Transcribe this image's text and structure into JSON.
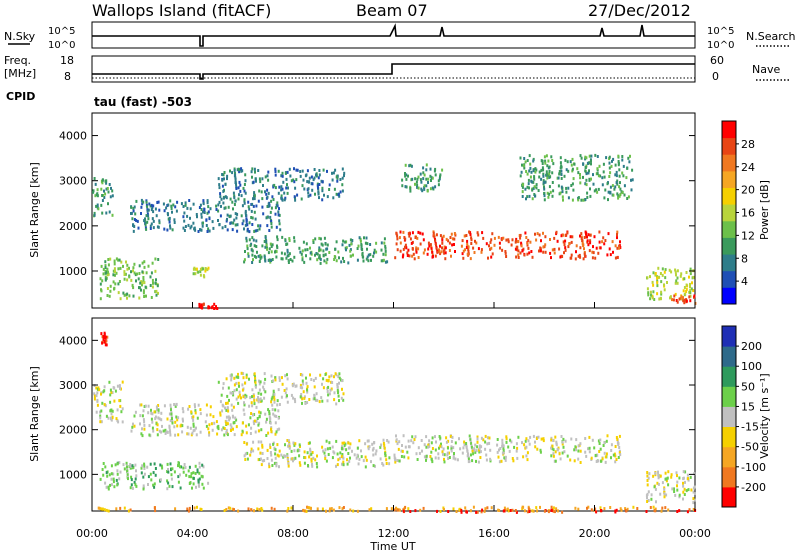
{
  "header": {
    "station": "Wallops Island (fitACF)",
    "beam": "Beam 07",
    "date": "27/Dec/2012"
  },
  "top_panels": {
    "nsky_label": "N.Sky",
    "nsky_scale_top": "10^5",
    "nsky_scale_bottom": "10^0",
    "nsearch_label": "N.Search",
    "nsearch_scale_top": "10^5",
    "nsearch_scale_bottom": "10^0",
    "freq_label": "Freq.",
    "freq_unit": "[MHz]",
    "freq_ticks": [
      "18",
      "8"
    ],
    "nave_label": "Nave",
    "nave_ticks": [
      "60",
      "0"
    ],
    "cpid_label": "CPID",
    "cpid_value": "tau (fast) -503"
  },
  "chart_data": [
    {
      "type": "heatmap",
      "panel": "power",
      "xlabel": "Time UT",
      "ylabel": "Slant Range [km]",
      "xticks": [
        "00:00",
        "04:00",
        "08:00",
        "12:00",
        "16:00",
        "20:00",
        "00:00"
      ],
      "xlim_hours": [
        0,
        24
      ],
      "ylim_km": [
        180,
        4500
      ],
      "yticks": [
        "1000",
        "2000",
        "3000",
        "4000"
      ],
      "colorbar": {
        "label": "Power [dB]",
        "ticks": [
          "4",
          "8",
          "12",
          "16",
          "20",
          "24",
          "28"
        ],
        "colors": [
          "#0000ff",
          "#1f4fb5",
          "#2e7d8a",
          "#3a9a5c",
          "#6cc04a",
          "#b8d43b",
          "#f5d000",
          "#f5a623",
          "#f07820",
          "#e84515",
          "#ff0000"
        ]
      },
      "regions": [
        {
          "t0": 0.0,
          "t1": 0.8,
          "r0": 2200,
          "r1": 3100,
          "level": 3
        },
        {
          "t0": 0.3,
          "t1": 2.6,
          "r0": 400,
          "r1": 1300,
          "level": 4
        },
        {
          "t0": 1.5,
          "t1": 7.5,
          "r0": 1900,
          "r1": 2600,
          "level": 2
        },
        {
          "t0": 4.0,
          "t1": 4.6,
          "r0": 900,
          "r1": 1100,
          "level": 5
        },
        {
          "t0": 4.2,
          "t1": 5.0,
          "r0": 200,
          "r1": 300,
          "level": 10
        },
        {
          "t0": 5.0,
          "t1": 10.0,
          "r0": 2600,
          "r1": 3300,
          "level": 2
        },
        {
          "t0": 6.0,
          "t1": 11.8,
          "r0": 1200,
          "r1": 1800,
          "level": 3
        },
        {
          "t0": 12.0,
          "t1": 21.0,
          "r0": 1300,
          "r1": 1900,
          "level": 9
        },
        {
          "t0": 12.3,
          "t1": 14.0,
          "r0": 2800,
          "r1": 3400,
          "level": 3
        },
        {
          "t0": 17.0,
          "t1": 21.5,
          "r0": 2600,
          "r1": 3600,
          "level": 3
        },
        {
          "t0": 22.0,
          "t1": 24.0,
          "r0": 400,
          "r1": 1100,
          "level": 5
        },
        {
          "t0": 23.0,
          "t1": 24.0,
          "r0": 300,
          "r1": 500,
          "level": 9
        }
      ]
    },
    {
      "type": "heatmap",
      "panel": "velocity",
      "xlabel": "Time UT",
      "ylabel": "Slant Range [km]",
      "xticks": [
        "00:00",
        "04:00",
        "08:00",
        "12:00",
        "16:00",
        "20:00",
        "00:00"
      ],
      "xlim_hours": [
        0,
        24
      ],
      "ylim_km": [
        180,
        4500
      ],
      "yticks": [
        "1000",
        "2000",
        "3000",
        "4000"
      ],
      "colorbar": {
        "label": "Velocity [m s⁻¹]",
        "ticks": [
          "200",
          "100",
          "50",
          "15",
          "-15",
          "-50",
          "-100",
          "-200"
        ],
        "colors": [
          "#1f2fb5",
          "#2e6a8a",
          "#2e9a5c",
          "#6cd04a",
          "#c0c0c0",
          "#f5d000",
          "#f5a623",
          "#f07820",
          "#ff0000"
        ]
      },
      "regions": [
        {
          "t0": 0.3,
          "t1": 0.6,
          "r0": 3900,
          "r1": 4200,
          "level": 8
        },
        {
          "t0": 0.0,
          "t1": 1.2,
          "r0": 2200,
          "r1": 3100,
          "level": 4
        },
        {
          "t0": 0.3,
          "t1": 4.6,
          "r0": 700,
          "r1": 1300,
          "level": 3
        },
        {
          "t0": 1.5,
          "t1": 7.5,
          "r0": 1900,
          "r1": 2600,
          "level": 4
        },
        {
          "t0": 5.0,
          "t1": 10.0,
          "r0": 2600,
          "r1": 3300,
          "level": 4
        },
        {
          "t0": 6.0,
          "t1": 11.8,
          "r0": 1200,
          "r1": 1800,
          "level": 4
        },
        {
          "t0": 12.0,
          "t1": 21.0,
          "r0": 1300,
          "r1": 1900,
          "level": 4
        },
        {
          "t0": 0.0,
          "t1": 24.0,
          "r0": 200,
          "r1": 300,
          "level": 6
        },
        {
          "t0": 12.0,
          "t1": 24.0,
          "r0": 180,
          "r1": 240,
          "level": 8
        },
        {
          "t0": 22.0,
          "t1": 24.0,
          "r0": 400,
          "r1": 1100,
          "level": 4
        }
      ]
    }
  ]
}
